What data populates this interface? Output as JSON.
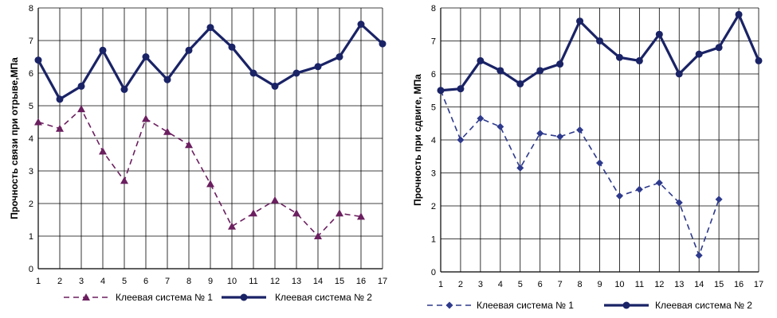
{
  "chart_data": [
    {
      "type": "line",
      "ylabel": "Прочность связи  при отрыве,МПа",
      "xlabel": "",
      "x": [
        1,
        2,
        3,
        4,
        5,
        6,
        7,
        8,
        9,
        10,
        11,
        12,
        13,
        14,
        15,
        16,
        17
      ],
      "ylim": [
        0,
        8
      ],
      "yticks": [
        0,
        1,
        2,
        3,
        4,
        5,
        6,
        7,
        8
      ],
      "grid": true,
      "legend_position": "bottom",
      "series": [
        {
          "name": "Клеевая система № 1",
          "color": "#6b1f5f",
          "marker": "triangle",
          "dash": true,
          "values": [
            4.5,
            4.3,
            4.9,
            3.6,
            2.7,
            4.6,
            4.2,
            3.8,
            2.6,
            1.3,
            1.7,
            2.1,
            1.7,
            1.0,
            1.7,
            1.6,
            null
          ]
        },
        {
          "name": "Клеевая система № 2",
          "color": "#1a2366",
          "marker": "circle",
          "dash": false,
          "values": [
            6.4,
            5.2,
            5.6,
            6.7,
            5.5,
            6.5,
            5.8,
            6.7,
            7.4,
            6.8,
            6.0,
            5.6,
            6.0,
            6.2,
            6.5,
            7.5,
            6.9
          ]
        }
      ]
    },
    {
      "type": "line",
      "ylabel": "Прочность  при сдвиге, МПа",
      "xlabel": "",
      "x": [
        1,
        2,
        3,
        4,
        5,
        6,
        7,
        8,
        9,
        10,
        11,
        12,
        13,
        14,
        15,
        16,
        17
      ],
      "ylim": [
        0,
        8
      ],
      "yticks": [
        0,
        1,
        2,
        3,
        4,
        5,
        6,
        7,
        8
      ],
      "grid": true,
      "legend_position": "bottom",
      "series": [
        {
          "name": "Клеевая система № 1",
          "color": "#2e3a8c",
          "marker": "diamond",
          "dash": true,
          "values": [
            5.5,
            4.0,
            4.65,
            4.4,
            3.15,
            4.2,
            4.1,
            4.3,
            3.3,
            2.3,
            2.5,
            2.7,
            2.1,
            0.5,
            2.2,
            null,
            null
          ]
        },
        {
          "name": "Клеевая система № 2",
          "color": "#1a2366",
          "marker": "circle",
          "dash": false,
          "values": [
            5.5,
            5.55,
            6.4,
            6.1,
            5.7,
            6.1,
            6.3,
            7.6,
            7.0,
            6.5,
            6.4,
            7.2,
            6.0,
            6.6,
            6.8,
            7.8,
            6.4
          ]
        }
      ]
    }
  ]
}
